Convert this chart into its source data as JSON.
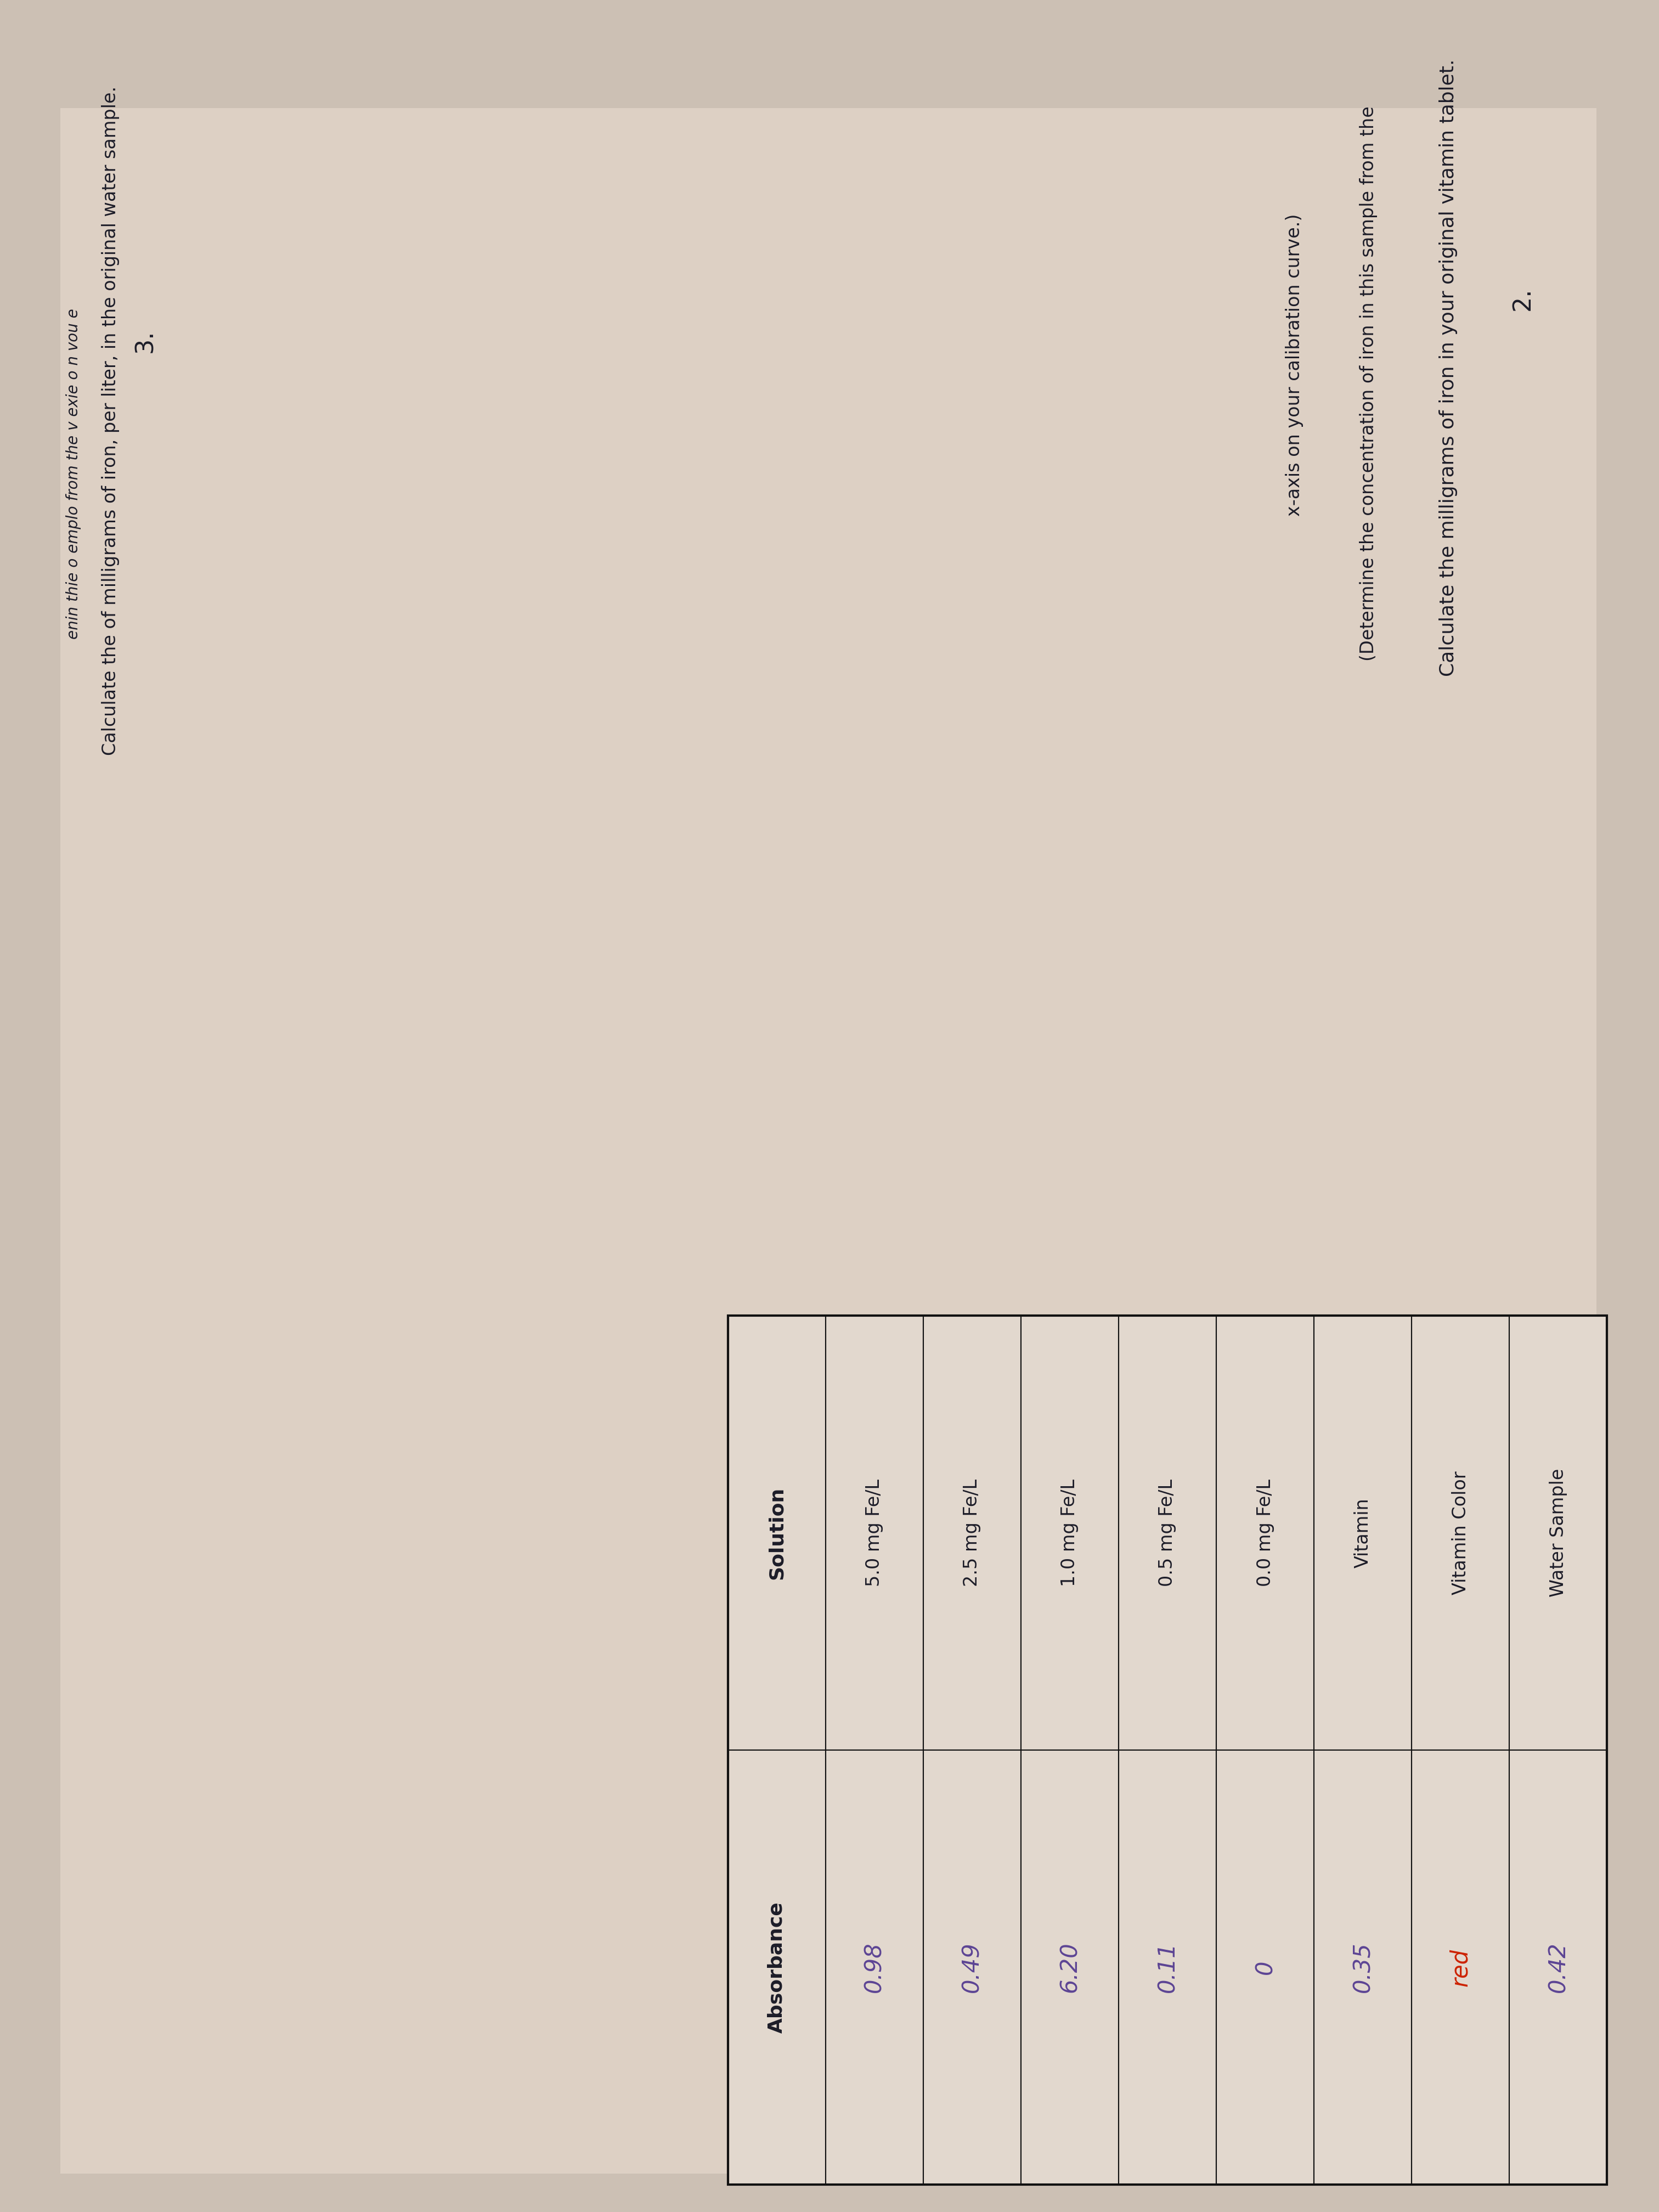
{
  "background_color": "#ccc0b4",
  "title_number": "2.",
  "title_text": "Calculate the milligrams of iron in your original vitamin tablet.",
  "subtitle_line1": "(Determine the concentration of iron in this sample from the",
  "subtitle_line2": "x-axis on your calibration curve.)",
  "question3_number": "3.",
  "question3_text": "Calculate the of milligrams of iron, per liter, in the original water sample.",
  "question3_subtext": "enin thie o emplo from the v exie o n vou e",
  "table_col_headers": [
    "Solution",
    "Absorbance"
  ],
  "table_rows": [
    [
      "5.0 mg Fe/L",
      "0.98"
    ],
    [
      "2.5 mg Fe/L",
      "0.49"
    ],
    [
      "1.0 mg Fe/L",
      "6.20"
    ],
    [
      "0.5 mg Fe/L",
      "0.11"
    ],
    [
      "0.0 mg Fe/L",
      "0"
    ],
    [
      "Vitamin",
      "0.35"
    ],
    [
      "Vitamin Color",
      "red"
    ],
    [
      "Water Sample",
      "0.42"
    ]
  ],
  "handwritten_color": "#5c4494",
  "printed_color": "#1c1c28",
  "table_border_color": "#111111",
  "table_bg": "#e2d8ce",
  "page_bg": "#d8ccc0"
}
